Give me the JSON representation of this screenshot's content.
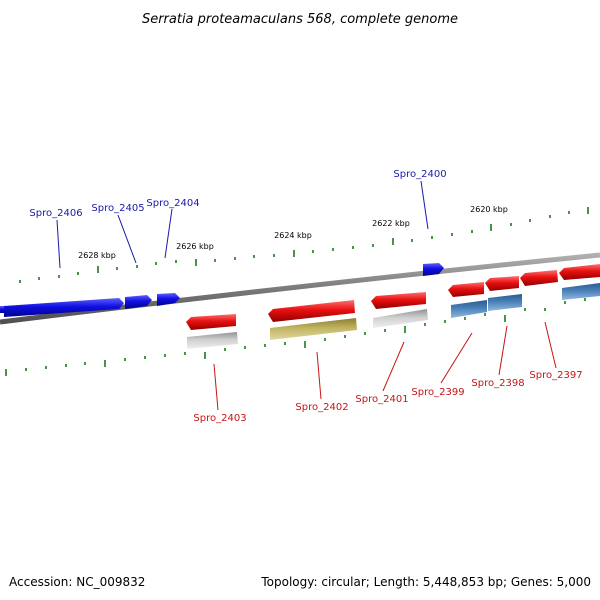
{
  "title": "Serratia proteamaculans 568, complete genome",
  "footer": {
    "accession": "Accession: NC_009832",
    "summary": "Topology: circular; Length: 5,448,853 bp; Genes: 5,000"
  },
  "colors": {
    "forward_gene": "#1010e0",
    "reverse_gene": "#e81010",
    "reverse_gray": "#b4b4b4",
    "reverse_olive": "#b4a850",
    "reverse_steel": "#4a80b8",
    "scale_tick": "#1a7a1a",
    "backbone": "#888888",
    "label_forward": "#1a1aa8",
    "label_reverse": "#c81414"
  },
  "kbp_labels": [
    "2628 kbp",
    "2626 kbp",
    "2624 kbp",
    "2622 kbp",
    "2620 kbp"
  ],
  "genes_labeled_forward": [
    "Spro_2406",
    "Spro_2405",
    "Spro_2404",
    "Spro_2400"
  ],
  "genes_labeled_reverse": [
    "Spro_2403",
    "Spro_2402",
    "Spro_2401",
    "Spro_2399",
    "Spro_2398",
    "Spro_2397"
  ]
}
